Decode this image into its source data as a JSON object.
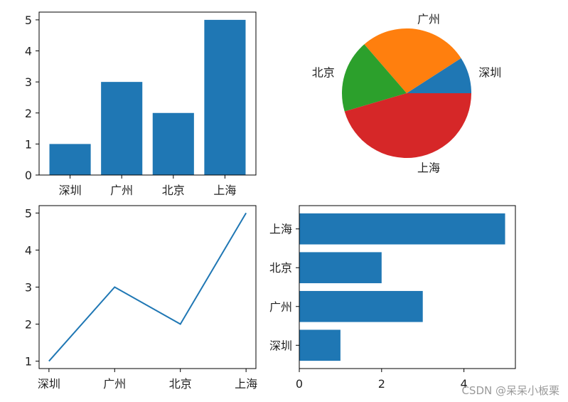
{
  "chart_data": [
    {
      "type": "bar",
      "orientation": "vertical",
      "categories": [
        "深圳",
        "广州",
        "北京",
        "上海"
      ],
      "values": [
        1,
        3,
        2,
        5
      ],
      "ylim": [
        0,
        5.25
      ],
      "yticks": [
        "0",
        "1",
        "2",
        "3",
        "4",
        "5"
      ],
      "color": "#1f77b4"
    },
    {
      "type": "pie",
      "labels": [
        "深圳",
        "广州",
        "北京",
        "上海"
      ],
      "values": [
        1,
        3,
        2,
        5
      ],
      "colors": [
        "#1f77b4",
        "#ff7f0e",
        "#2ca02c",
        "#d62728"
      ]
    },
    {
      "type": "line",
      "categories": [
        "深圳",
        "广州",
        "北京",
        "上海"
      ],
      "values": [
        1,
        3,
        2,
        5
      ],
      "ylim": [
        0.8,
        5.2
      ],
      "yticks": [
        "1",
        "2",
        "3",
        "4",
        "5"
      ],
      "color": "#1f77b4"
    },
    {
      "type": "bar",
      "orientation": "horizontal",
      "categories": [
        "深圳",
        "广州",
        "北京",
        "上海"
      ],
      "values": [
        1,
        3,
        2,
        5
      ],
      "xlim": [
        0,
        5.25
      ],
      "xticks": [
        "0",
        "2",
        "4"
      ],
      "color": "#1f77b4"
    }
  ],
  "watermark": "CSDN @呆呆小板栗"
}
